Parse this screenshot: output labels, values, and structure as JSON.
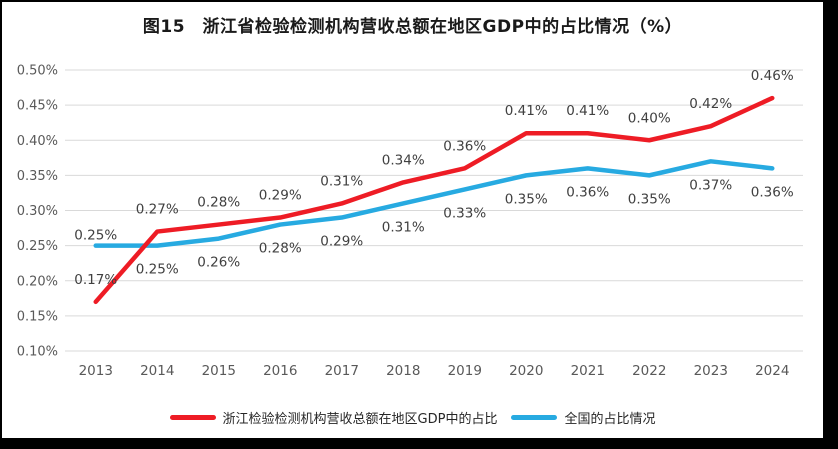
{
  "chart_data": {
    "type": "line",
    "title": "图15　浙江省检验检测机构营收总额在地区GDP中的占比情况（%）",
    "categories": [
      "2013",
      "2014",
      "2015",
      "2016",
      "2017",
      "2018",
      "2019",
      "2020",
      "2021",
      "2022",
      "2023",
      "2024"
    ],
    "series": [
      {
        "name": "浙江检验检测机构营收总额在地区GDP中的占比",
        "color": "#EE1C25",
        "values": [
          0.17,
          0.27,
          0.28,
          0.29,
          0.31,
          0.34,
          0.36,
          0.41,
          0.41,
          0.4,
          0.42,
          0.46
        ],
        "label_position": "above"
      },
      {
        "name": "全国的占比情况",
        "color": "#27AAE1",
        "values": [
          0.25,
          0.25,
          0.26,
          0.28,
          0.29,
          0.31,
          0.33,
          0.35,
          0.36,
          0.35,
          0.37,
          0.36
        ],
        "label_position": "below",
        "label_overrides": {
          "0": "above"
        }
      }
    ],
    "ylim": [
      0.1,
      0.5
    ],
    "ytick_step": 0.05,
    "yticks": [
      "0.50%",
      "0.45%",
      "0.40%",
      "0.35%",
      "0.30%",
      "0.25%",
      "0.20%",
      "0.15%",
      "0.10%"
    ],
    "value_suffix": "%",
    "grid": true,
    "legend_position": "bottom"
  }
}
